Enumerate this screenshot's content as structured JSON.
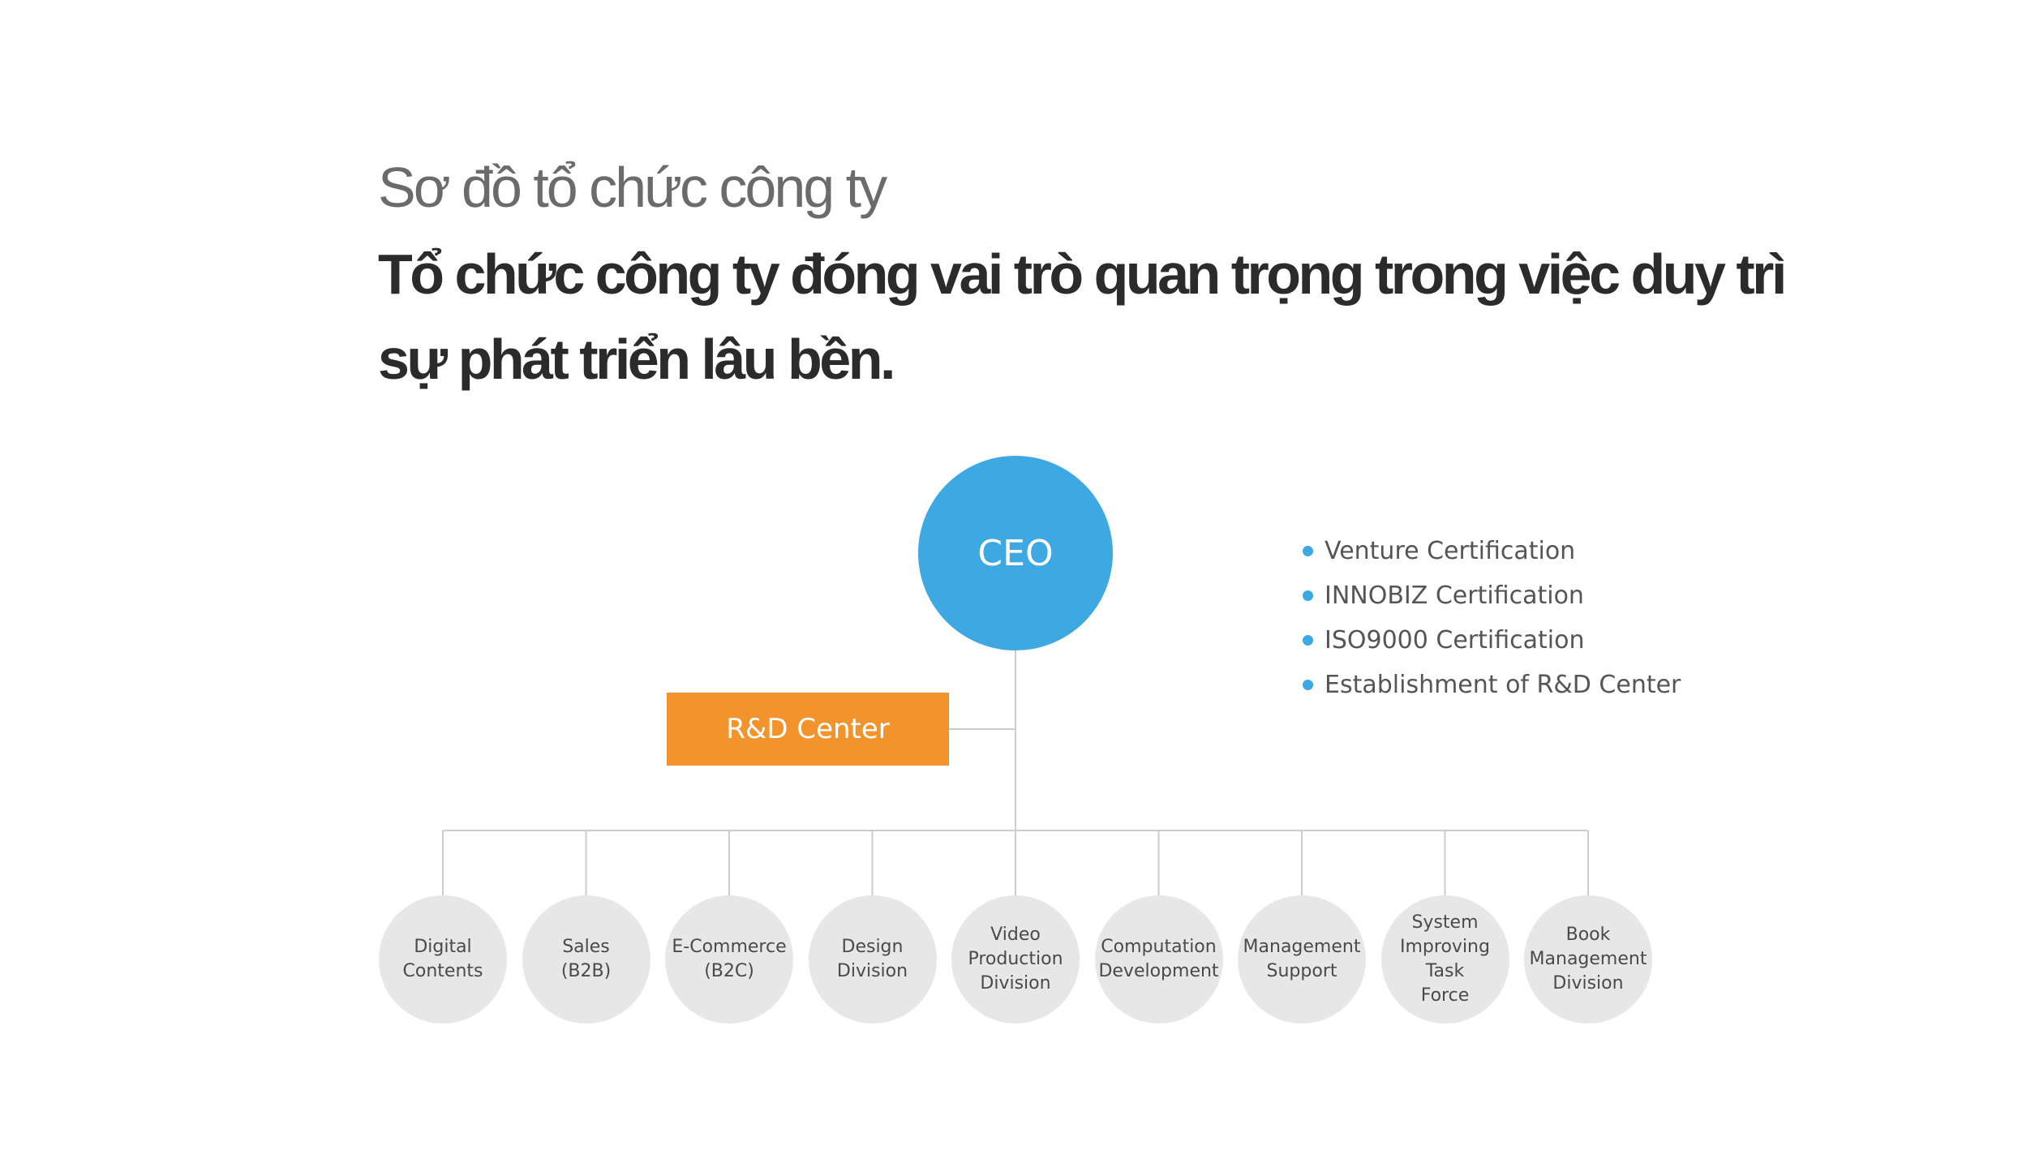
{
  "header": {
    "subtitle": "Sơ đồ tổ chức công ty",
    "headline": "Tổ chức công ty đóng vai trò quan trọng trong việc duy trì sự phát triển lâu bền."
  },
  "org": {
    "ceo": "CEO",
    "rd_center": "R&D Center",
    "departments": [
      "Digital\nContents",
      "Sales\n(B2B)",
      "E-Commerce\n(B2C)",
      "Design\nDivision",
      "Video\nProduction\nDivision",
      "Computation\nDevelopment",
      "Management\nSupport",
      "System\nImproving\nTask\nForce",
      "Book\nManagement\nDivision"
    ]
  },
  "certifications": [
    "Venture Certification",
    "INNOBIZ Certification",
    "ISO9000 Certification",
    "Establishment of R&D Center"
  ],
  "colors": {
    "ceo": "#3ea8e2",
    "rd_center": "#f2942b",
    "department": "#e7e7e7",
    "connector": "#cccccc",
    "bullet": "#3ea8e2"
  }
}
